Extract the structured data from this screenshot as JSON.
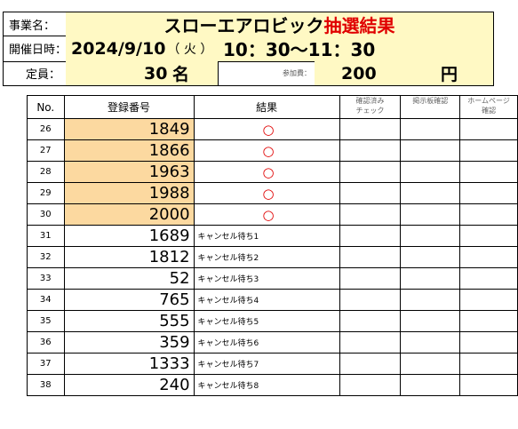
{
  "header": {
    "event_label": "事業名：",
    "title_main": "スローエアロビック",
    "title_red": "抽選結果",
    "title_red_color": "#e00000",
    "datetime_label": "開催日時：",
    "date": "2024/9/10",
    "weekday": "（ 火 ）",
    "time": "10：30～11：30",
    "capacity_label": "定員：",
    "capacity_value": "30",
    "capacity_unit": "名",
    "fee_label": "参加費：",
    "fee_value": "200",
    "fee_unit": "円",
    "highlight_color": "#fff9c4"
  },
  "table": {
    "columns": [
      "No.",
      "登録番号",
      "結果",
      "確認済み\nチェック",
      "掲示板確認",
      "ホームページ\n確認"
    ],
    "winner_color": "#fcd9a0",
    "rows": [
      {
        "no": "26",
        "reg": "1849",
        "result": "○",
        "winner": true
      },
      {
        "no": "27",
        "reg": "1866",
        "result": "○",
        "winner": true
      },
      {
        "no": "28",
        "reg": "1963",
        "result": "○",
        "winner": true
      },
      {
        "no": "29",
        "reg": "1988",
        "result": "○",
        "winner": true
      },
      {
        "no": "30",
        "reg": "2000",
        "result": "○",
        "winner": true
      },
      {
        "no": "31",
        "reg": "1689",
        "result": "キャンセル待ち1",
        "winner": false
      },
      {
        "no": "32",
        "reg": "1812",
        "result": "キャンセル待ち2",
        "winner": false
      },
      {
        "no": "33",
        "reg": "52",
        "result": "キャンセル待ち3",
        "winner": false
      },
      {
        "no": "34",
        "reg": "765",
        "result": "キャンセル待ち4",
        "winner": false
      },
      {
        "no": "35",
        "reg": "555",
        "result": "キャンセル待ち5",
        "winner": false
      },
      {
        "no": "36",
        "reg": "359",
        "result": "キャンセル待ち6",
        "winner": false
      },
      {
        "no": "37",
        "reg": "1333",
        "result": "キャンセル待ち7",
        "winner": false
      },
      {
        "no": "38",
        "reg": "240",
        "result": "キャンセル待ち8",
        "winner": false
      }
    ]
  }
}
